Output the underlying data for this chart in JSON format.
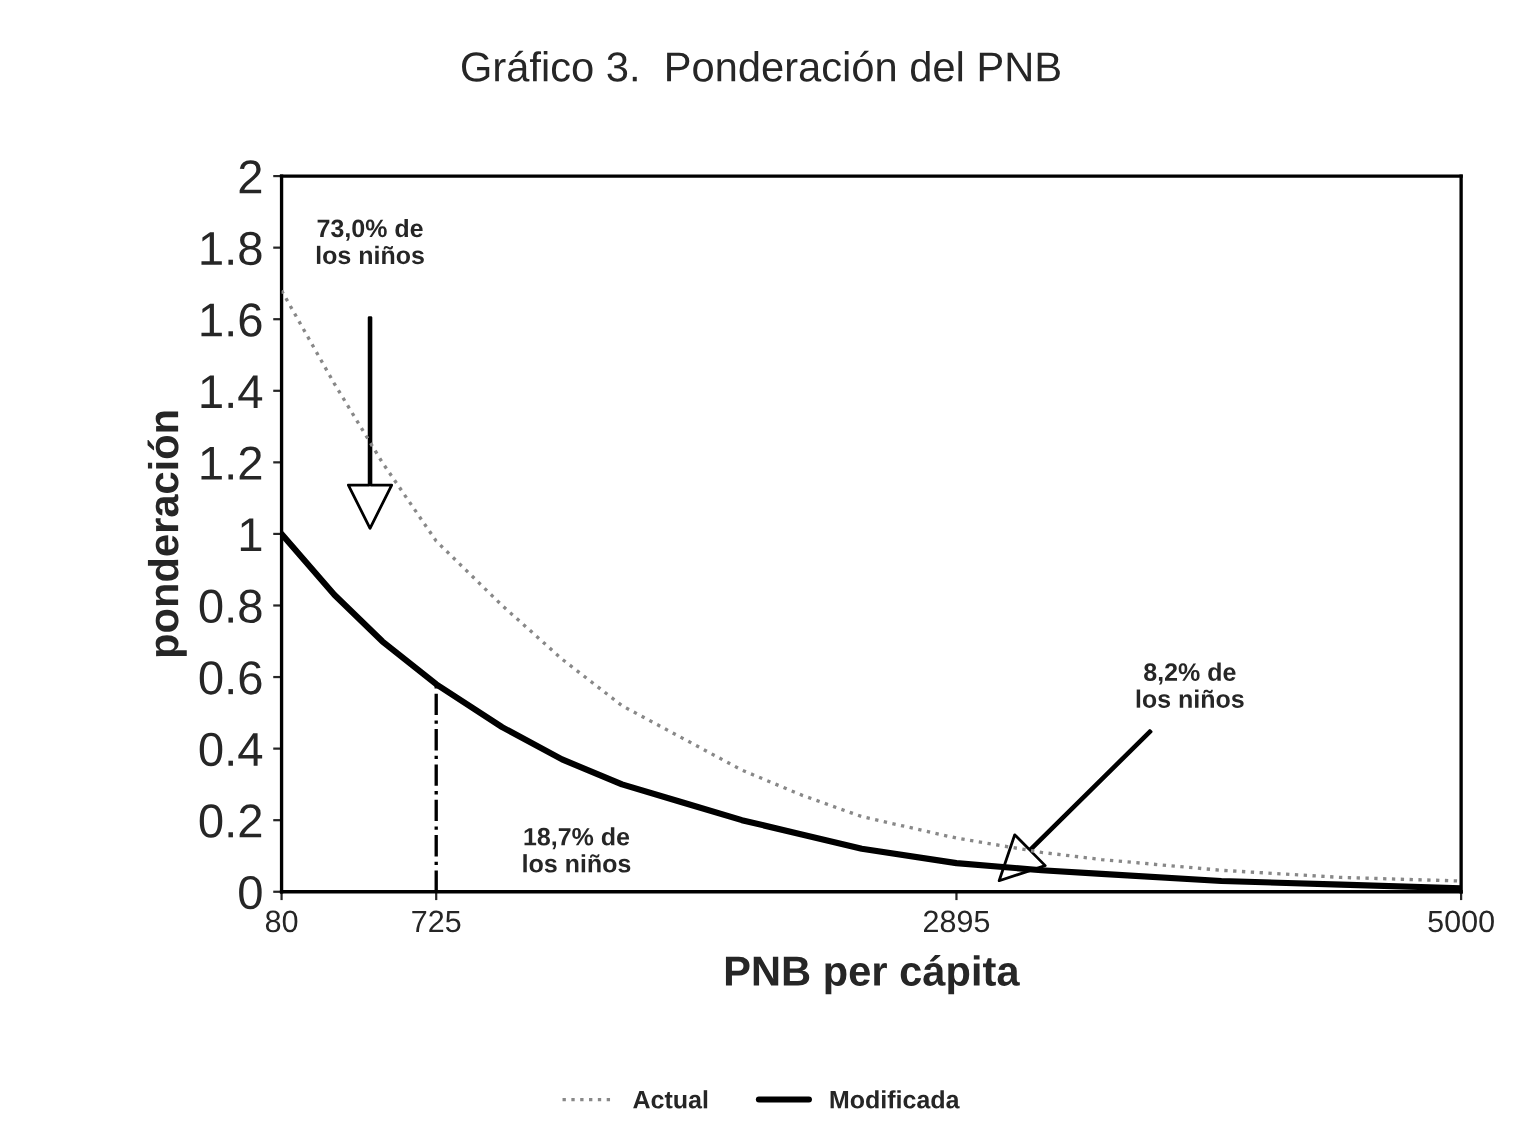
{
  "chart_data": {
    "type": "line",
    "title": "Gráfico 3.  Ponderación del PNB",
    "xlabel": "PNB per cápita",
    "ylabel": "ponderación",
    "x": [
      80,
      300,
      500,
      725,
      1000,
      1250,
      1500,
      1750,
      2000,
      2250,
      2500,
      2895,
      3250,
      3500,
      4000,
      4500,
      5000
    ],
    "series": [
      {
        "name": "Actual",
        "color": "#888888",
        "line_style": "dotted",
        "values": [
          1.68,
          1.42,
          1.2,
          0.98,
          0.8,
          0.65,
          0.52,
          0.43,
          0.34,
          0.27,
          0.21,
          0.15,
          0.11,
          0.09,
          0.06,
          0.04,
          0.03
        ]
      },
      {
        "name": "Modificada",
        "color": "#000000",
        "line_style": "solid",
        "values": [
          1.0,
          0.83,
          0.7,
          0.58,
          0.46,
          0.37,
          0.3,
          0.25,
          0.2,
          0.16,
          0.12,
          0.08,
          0.06,
          0.05,
          0.03,
          0.02,
          0.01
        ]
      }
    ],
    "xlim": [
      80,
      5000
    ],
    "xticks": [
      80,
      725,
      2895,
      5000
    ],
    "ylim": [
      0,
      2
    ],
    "yticks": [
      0,
      {
        "value": 0.2,
        "label": "0.2"
      },
      {
        "value": 0.4,
        "label": "0.4"
      },
      {
        "value": 0.6,
        "label": "0.6"
      },
      {
        "value": 0.8,
        "label": "0.8"
      },
      1,
      {
        "value": 1.2,
        "label": "1.2"
      },
      {
        "value": 1.4,
        "label": "1.4"
      },
      {
        "value": 1.6,
        "label": "1.6"
      },
      {
        "value": 1.8,
        "label": "1.8"
      },
      2
    ],
    "ref_lines": [
      {
        "axis": "x",
        "value": 725,
        "line_style": "dashdot",
        "color": "#000000"
      }
    ],
    "annotations": [
      "73,0% de\nlos niños",
      "18,7% de\nlos niños",
      "8,2% de\nlos niños"
    ],
    "grid": false,
    "legend": "bottom"
  }
}
